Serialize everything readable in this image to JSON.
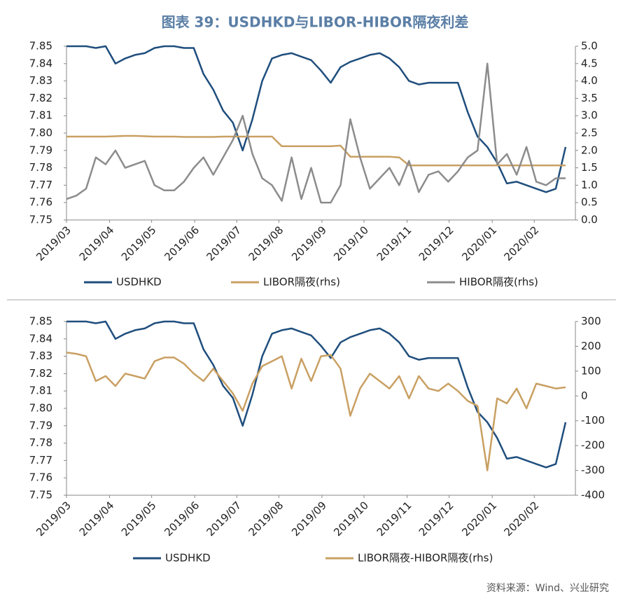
{
  "title": "图表 39：USDHKD与LIBOR-HIBOR隔夜利差",
  "source": "资料来源：Wind、兴业研究",
  "chart_data": [
    {
      "type": "line",
      "x": [
        0,
        1,
        2,
        3,
        4,
        5,
        6,
        7,
        8,
        9,
        10,
        11,
        12,
        13,
        14,
        15,
        16,
        17,
        18,
        19,
        20,
        21,
        22,
        23,
        24,
        25,
        26,
        27,
        28,
        29,
        30,
        31,
        32,
        33,
        34,
        35,
        36,
        37,
        38,
        39,
        40,
        41,
        42,
        43,
        44,
        45,
        46,
        47,
        48,
        49,
        50,
        51
      ],
      "xlim": [
        0,
        52
      ],
      "xticks": [
        {
          "value": 0,
          "label": "2019/03"
        },
        {
          "value": 4.4,
          "label": "2019/04"
        },
        {
          "value": 8.7,
          "label": "2019/05"
        },
        {
          "value": 13.1,
          "label": "2019/06"
        },
        {
          "value": 17.4,
          "label": "2019/07"
        },
        {
          "value": 21.7,
          "label": "2019/08"
        },
        {
          "value": 26.1,
          "label": "2019/09"
        },
        {
          "value": 30.4,
          "label": "2019/10"
        },
        {
          "value": 34.8,
          "label": "2019/11"
        },
        {
          "value": 39.1,
          "label": "2019/12"
        },
        {
          "value": 43.5,
          "label": "2020/01"
        },
        {
          "value": 47.8,
          "label": "2020/02"
        }
      ],
      "ylim": [
        7.75,
        7.85
      ],
      "yticks": [
        7.75,
        7.76,
        7.77,
        7.78,
        7.79,
        {
          "value": 7.8,
          "label": "7.80"
        },
        7.81,
        7.82,
        7.83,
        7.84,
        7.85
      ],
      "y2lim": [
        0,
        5
      ],
      "y2ticks": [
        {
          "value": 0,
          "label": "0.0"
        },
        0.5,
        {
          "value": 1,
          "label": "1.0"
        },
        1.5,
        {
          "value": 2,
          "label": "2.0"
        },
        2.5,
        {
          "value": 3,
          "label": "3.0"
        },
        3.5,
        {
          "value": 4,
          "label": "4.0"
        },
        4.5,
        {
          "value": 5,
          "label": "5.0"
        }
      ],
      "series": [
        {
          "name": "USDHKD",
          "color": "#1f4e7d",
          "values": [
            7.85,
            7.85,
            7.85,
            7.849,
            7.85,
            7.84,
            7.843,
            7.845,
            7.846,
            7.849,
            7.85,
            7.85,
            7.849,
            7.849,
            7.834,
            7.825,
            7.813,
            7.806,
            7.79,
            7.808,
            7.83,
            7.843,
            7.845,
            7.846,
            7.844,
            7.842,
            7.836,
            7.829,
            7.838,
            7.841,
            7.843,
            7.845,
            7.846,
            7.843,
            7.838,
            7.83,
            7.828,
            7.829,
            7.829,
            7.829,
            7.829,
            7.812,
            7.798,
            7.792,
            7.783,
            7.771,
            7.772,
            7.77,
            7.768,
            7.766,
            7.768,
            7.792
          ]
        },
        {
          "name": "LIBOR隔夜(rhs)",
          "color": "#c9a063",
          "axis": "y2",
          "values": [
            2.4,
            2.4,
            2.4,
            2.4,
            2.4,
            2.41,
            2.42,
            2.42,
            2.41,
            2.4,
            2.4,
            2.4,
            2.39,
            2.39,
            2.39,
            2.39,
            2.4,
            2.4,
            2.4,
            2.4,
            2.4,
            2.4,
            2.12,
            2.12,
            2.12,
            2.12,
            2.12,
            2.12,
            2.14,
            1.82,
            1.82,
            1.82,
            1.82,
            1.82,
            1.8,
            1.57,
            1.57,
            1.57,
            1.57,
            1.57,
            1.57,
            1.57,
            1.57,
            1.57,
            1.57,
            1.57,
            1.57,
            1.57,
            1.57,
            1.57,
            1.57,
            1.57
          ]
        },
        {
          "name": "HIBOR隔夜(rhs)",
          "color": "#8c8c8c",
          "axis": "y2",
          "values": [
            0.6,
            0.7,
            0.9,
            1.8,
            1.6,
            2.0,
            1.5,
            1.6,
            1.7,
            1.0,
            0.85,
            0.85,
            1.1,
            1.5,
            1.8,
            1.3,
            1.8,
            2.3,
            3.0,
            1.9,
            1.2,
            1.0,
            0.55,
            1.8,
            0.6,
            1.5,
            0.5,
            0.5,
            1.0,
            2.9,
            1.8,
            0.9,
            1.2,
            1.5,
            1.0,
            1.7,
            0.8,
            1.3,
            1.4,
            1.1,
            1.4,
            1.8,
            2.0,
            4.5,
            1.6,
            1.9,
            1.3,
            2.1,
            1.1,
            1.0,
            1.2,
            1.2
          ]
        }
      ]
    },
    {
      "type": "line",
      "x": [
        0,
        1,
        2,
        3,
        4,
        5,
        6,
        7,
        8,
        9,
        10,
        11,
        12,
        13,
        14,
        15,
        16,
        17,
        18,
        19,
        20,
        21,
        22,
        23,
        24,
        25,
        26,
        27,
        28,
        29,
        30,
        31,
        32,
        33,
        34,
        35,
        36,
        37,
        38,
        39,
        40,
        41,
        42,
        43,
        44,
        45,
        46,
        47,
        48,
        49,
        50,
        51
      ],
      "xlim": [
        0,
        52
      ],
      "xticks": [
        {
          "value": 0,
          "label": "2019/03"
        },
        {
          "value": 4.4,
          "label": "2019/04"
        },
        {
          "value": 8.7,
          "label": "2019/05"
        },
        {
          "value": 13.1,
          "label": "2019/06"
        },
        {
          "value": 17.4,
          "label": "2019/07"
        },
        {
          "value": 21.7,
          "label": "2019/08"
        },
        {
          "value": 26.1,
          "label": "2019/09"
        },
        {
          "value": 30.4,
          "label": "2019/10"
        },
        {
          "value": 34.8,
          "label": "2019/11"
        },
        {
          "value": 39.1,
          "label": "2019/12"
        },
        {
          "value": 43.5,
          "label": "2020/01"
        },
        {
          "value": 47.8,
          "label": "2020/02"
        }
      ],
      "ylim": [
        7.75,
        7.85
      ],
      "yticks": [
        7.75,
        7.76,
        7.77,
        7.78,
        7.79,
        {
          "value": 7.8,
          "label": "7.80"
        },
        7.81,
        7.82,
        7.83,
        7.84,
        7.85
      ],
      "y2lim": [
        -400,
        300
      ],
      "y2ticks": [
        -400,
        -300,
        -200,
        -100,
        0,
        100,
        200,
        300
      ],
      "series": [
        {
          "name": "USDHKD",
          "color": "#1f4e7d",
          "values": [
            7.85,
            7.85,
            7.85,
            7.849,
            7.85,
            7.84,
            7.843,
            7.845,
            7.846,
            7.849,
            7.85,
            7.85,
            7.849,
            7.849,
            7.834,
            7.825,
            7.813,
            7.806,
            7.79,
            7.808,
            7.83,
            7.843,
            7.845,
            7.846,
            7.844,
            7.842,
            7.836,
            7.829,
            7.838,
            7.841,
            7.843,
            7.845,
            7.846,
            7.843,
            7.838,
            7.83,
            7.828,
            7.829,
            7.829,
            7.829,
            7.829,
            7.812,
            7.798,
            7.792,
            7.783,
            7.771,
            7.772,
            7.77,
            7.768,
            7.766,
            7.768,
            7.792
          ]
        },
        {
          "name": "LIBOR隔夜-HIBOR隔夜(rhs)",
          "color": "#c9a063",
          "axis": "y2",
          "values": [
            175,
            170,
            160,
            60,
            80,
            40,
            90,
            80,
            70,
            140,
            155,
            155,
            130,
            90,
            60,
            110,
            60,
            10,
            -60,
            50,
            120,
            140,
            160,
            30,
            150,
            60,
            160,
            165,
            110,
            -80,
            30,
            90,
            60,
            30,
            80,
            -10,
            80,
            30,
            20,
            50,
            20,
            -20,
            -40,
            -300,
            -10,
            -30,
            30,
            -50,
            50,
            40,
            30,
            35
          ]
        }
      ]
    }
  ]
}
